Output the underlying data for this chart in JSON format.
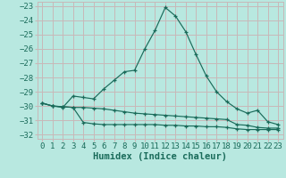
{
  "xlabel": "Humidex (Indice chaleur)",
  "background_color": "#b8e8e0",
  "grid_color": "#c8b8b8",
  "line_color": "#1a6b5a",
  "x": [
    0,
    1,
    2,
    3,
    4,
    5,
    6,
    7,
    8,
    9,
    10,
    11,
    12,
    13,
    14,
    15,
    16,
    17,
    18,
    19,
    20,
    21,
    22,
    23
  ],
  "line1": [
    -29.8,
    -30.0,
    -30.1,
    -29.3,
    -29.4,
    -29.5,
    -28.8,
    -28.2,
    -27.6,
    -27.5,
    -26.0,
    -24.7,
    -23.1,
    -23.7,
    -24.8,
    -26.4,
    -27.9,
    -29.0,
    -29.7,
    -30.2,
    -30.5,
    -30.3,
    -31.1,
    -31.3
  ],
  "line2": [
    -29.8,
    -30.0,
    -30.05,
    -30.1,
    -31.15,
    -31.25,
    -31.3,
    -31.3,
    -31.3,
    -31.3,
    -31.3,
    -31.3,
    -31.35,
    -31.35,
    -31.4,
    -31.4,
    -31.45,
    -31.45,
    -31.5,
    -31.6,
    -31.65,
    -31.65,
    -31.65,
    -31.65
  ],
  "line3": [
    -29.8,
    -30.0,
    -30.05,
    -30.1,
    -30.1,
    -30.15,
    -30.2,
    -30.3,
    -30.4,
    -30.5,
    -30.55,
    -30.6,
    -30.65,
    -30.7,
    -30.75,
    -30.8,
    -30.85,
    -30.9,
    -30.95,
    -31.3,
    -31.35,
    -31.5,
    -31.55,
    -31.55
  ],
  "ylim": [
    -32.3,
    -22.7
  ],
  "xlim": [
    -0.5,
    23.5
  ],
  "yticks": [
    -23,
    -24,
    -25,
    -26,
    -27,
    -28,
    -29,
    -30,
    -31,
    -32
  ],
  "xticks": [
    0,
    1,
    2,
    3,
    4,
    5,
    6,
    7,
    8,
    9,
    10,
    11,
    12,
    13,
    14,
    15,
    16,
    17,
    18,
    19,
    20,
    21,
    22,
    23
  ],
  "tick_fontsize": 6.5,
  "label_fontsize": 7.5
}
